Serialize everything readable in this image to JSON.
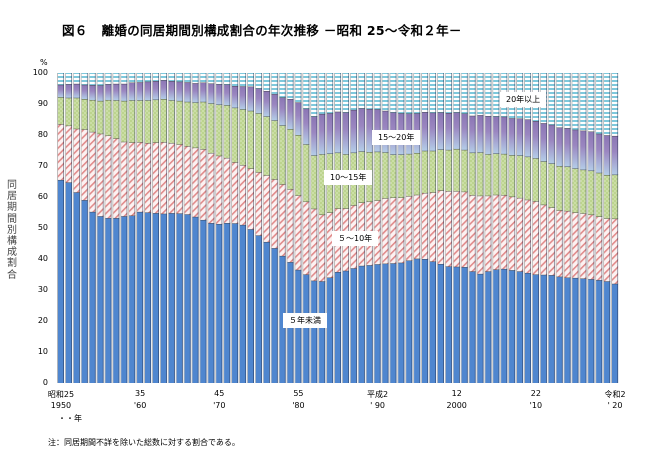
{
  "title": {
    "figure_no": "図６",
    "text": "離婚の同居期間別構成割合の年次推移 －昭和 25～令和２年－"
  },
  "footnote": "注：同居期間不詳を除いた総数に対する割合である。",
  "chart_data": {
    "type": "bar",
    "stacked": true,
    "title": "図６　離婚の同居期間別構成割合の年次推移 －昭和 25～令和２年－",
    "xlabel": "年",
    "ylabel": "同居期間別構成割合",
    "yunit": "%",
    "ylim": [
      0,
      100
    ],
    "yticks": [
      "0",
      "10",
      "20",
      "30",
      "40",
      "50",
      "60",
      "70",
      "80",
      "90",
      "100"
    ],
    "xtick_labels": [
      {
        "index": 0,
        "line1": "昭和25",
        "line2": "1950"
      },
      {
        "index": 10,
        "line1": "35",
        "line2": "'60"
      },
      {
        "index": 20,
        "line1": "45",
        "line2": "'70"
      },
      {
        "index": 30,
        "line1": "55",
        "line2": "'80"
      },
      {
        "index": 40,
        "line1": "平成2",
        "line2": "' 90"
      },
      {
        "index": 50,
        "line1": "12",
        "line2": "2000"
      },
      {
        "index": 60,
        "line1": "22",
        "line2": "'10"
      },
      {
        "index": 70,
        "line1": "令和2",
        "line2": "' 20"
      }
    ],
    "x_unit_label": "・・年",
    "categories": [
      1950,
      1951,
      1952,
      1953,
      1954,
      1955,
      1956,
      1957,
      1958,
      1959,
      1960,
      1961,
      1962,
      1963,
      1964,
      1965,
      1966,
      1967,
      1968,
      1969,
      1970,
      1971,
      1972,
      1973,
      1974,
      1975,
      1976,
      1977,
      1978,
      1979,
      1980,
      1981,
      1982,
      1983,
      1984,
      1985,
      1986,
      1987,
      1988,
      1989,
      1990,
      1991,
      1992,
      1993,
      1994,
      1995,
      1996,
      1997,
      1998,
      1999,
      2000,
      2001,
      2002,
      2003,
      2004,
      2005,
      2006,
      2007,
      2008,
      2009,
      2010,
      2011,
      2012,
      2013,
      2014,
      2015,
      2016,
      2017,
      2018,
      2019,
      2020
    ],
    "series": [
      {
        "name": "5年未満",
        "label": "５年未満",
        "color": "#4f86cf",
        "values": [
          65.5,
          64.7,
          61.5,
          59.0,
          55.2,
          53.8,
          53.2,
          53.2,
          53.8,
          54.0,
          55.2,
          55.0,
          54.8,
          54.6,
          54.8,
          54.7,
          54.4,
          53.6,
          52.6,
          51.6,
          51.3,
          51.6,
          51.5,
          51.0,
          49.6,
          47.6,
          45.5,
          43.5,
          41.0,
          39.0,
          36.5,
          35.0,
          33.0,
          32.8,
          34.0,
          35.8,
          36.2,
          37.0,
          37.8,
          38.0,
          38.3,
          38.5,
          38.6,
          38.8,
          39.5,
          40.1,
          40.0,
          39.2,
          38.4,
          37.6,
          37.5,
          37.4,
          36.0,
          35.2,
          36.0,
          36.6,
          36.8,
          36.4,
          36.0,
          35.5,
          35.0,
          34.9,
          34.8,
          34.3,
          34.0,
          33.9,
          33.7,
          33.5,
          33.2,
          32.8,
          32.0
        ]
      },
      {
        "name": "5～10年",
        "label": "５～10年",
        "color": "#e07070",
        "values": [
          18.0,
          18.3,
          20.5,
          22.8,
          25.8,
          26.6,
          26.6,
          25.7,
          24.0,
          23.6,
          22.5,
          22.4,
          22.8,
          23.1,
          22.6,
          22.3,
          22.0,
          22.3,
          22.8,
          22.6,
          22.0,
          21.0,
          19.7,
          19.3,
          19.6,
          20.4,
          21.5,
          22.2,
          23.1,
          23.5,
          24.0,
          23.5,
          23.2,
          21.5,
          21.0,
          20.5,
          20.1,
          20.3,
          20.4,
          20.5,
          20.6,
          21.1,
          21.2,
          21.0,
          20.8,
          20.6,
          21.3,
          22.3,
          23.7,
          24.3,
          24.4,
          24.3,
          24.6,
          25.2,
          24.4,
          24.1,
          23.8,
          23.7,
          23.7,
          23.6,
          23.6,
          22.6,
          21.8,
          21.4,
          21.5,
          21.1,
          21.0,
          20.8,
          20.5,
          20.3,
          21.0
        ]
      },
      {
        "name": "10～15年",
        "label": "10～15年",
        "color": "#a8c878",
        "values": [
          8.7,
          9.0,
          10.0,
          9.8,
          10.3,
          10.6,
          11.5,
          12.3,
          13.2,
          13.6,
          13.5,
          13.8,
          13.8,
          13.9,
          13.8,
          14.0,
          14.3,
          14.6,
          15.3,
          16.0,
          16.5,
          17.0,
          17.6,
          18.0,
          18.6,
          19.0,
          19.0,
          19.0,
          19.0,
          19.4,
          19.5,
          18.5,
          17.2,
          19.5,
          19.0,
          18.0,
          17.5,
          17.0,
          16.5,
          16.0,
          15.7,
          14.8,
          13.9,
          13.9,
          13.6,
          13.5,
          13.6,
          13.4,
          13.2,
          13.3,
          13.6,
          13.5,
          13.7,
          14.0,
          13.4,
          13.3,
          13.3,
          13.4,
          13.7,
          13.9,
          13.9,
          14.0,
          14.2,
          14.3,
          14.3,
          14.2,
          14.1,
          14.2,
          14.1,
          14.0,
          14.2
        ]
      },
      {
        "name": "15～20年",
        "label": "15～20年",
        "color": "#9b86be",
        "values": [
          4.0,
          4.4,
          4.5,
          4.6,
          4.8,
          5.0,
          5.1,
          5.3,
          5.5,
          5.7,
          5.8,
          6.0,
          6.0,
          6.1,
          6.2,
          6.2,
          6.3,
          6.2,
          6.2,
          6.4,
          6.6,
          6.7,
          7.0,
          7.4,
          7.8,
          8.0,
          8.2,
          8.5,
          9.0,
          9.7,
          10.5,
          11.5,
          12.6,
          13.0,
          13.0,
          13.2,
          13.5,
          13.8,
          13.9,
          13.9,
          13.7,
          13.4,
          13.6,
          13.3,
          13.0,
          12.8,
          12.5,
          12.3,
          12.0,
          11.9,
          11.8,
          11.7,
          11.9,
          12.0,
          12.3,
          12.0,
          12.0,
          11.9,
          11.9,
          12.0,
          12.0,
          12.3,
          12.5,
          12.4,
          12.4,
          12.5,
          12.6,
          12.6,
          12.6,
          12.8,
          12.5
        ]
      },
      {
        "name": "20年以上",
        "label": "20年以上",
        "color": "#7ec8dc",
        "values": [
          3.8,
          3.6,
          3.5,
          3.8,
          3.9,
          4.0,
          3.6,
          3.5,
          3.5,
          3.1,
          3.0,
          2.8,
          2.6,
          2.3,
          2.6,
          2.8,
          3.0,
          3.3,
          3.1,
          3.4,
          3.6,
          3.7,
          4.2,
          4.3,
          4.4,
          5.0,
          5.8,
          6.8,
          7.9,
          8.4,
          9.5,
          11.5,
          14.0,
          13.2,
          13.0,
          12.5,
          12.7,
          11.9,
          11.4,
          11.6,
          11.7,
          12.2,
          12.7,
          13.0,
          13.1,
          13.0,
          12.6,
          12.8,
          12.7,
          12.9,
          12.7,
          13.1,
          13.8,
          13.6,
          13.9,
          14.0,
          14.1,
          14.6,
          14.7,
          15.0,
          15.5,
          16.2,
          16.7,
          17.6,
          17.8,
          18.3,
          18.6,
          18.9,
          19.6,
          20.1,
          20.3
        ]
      }
    ],
    "legend_placement": "inline-labels",
    "grid": false
  }
}
